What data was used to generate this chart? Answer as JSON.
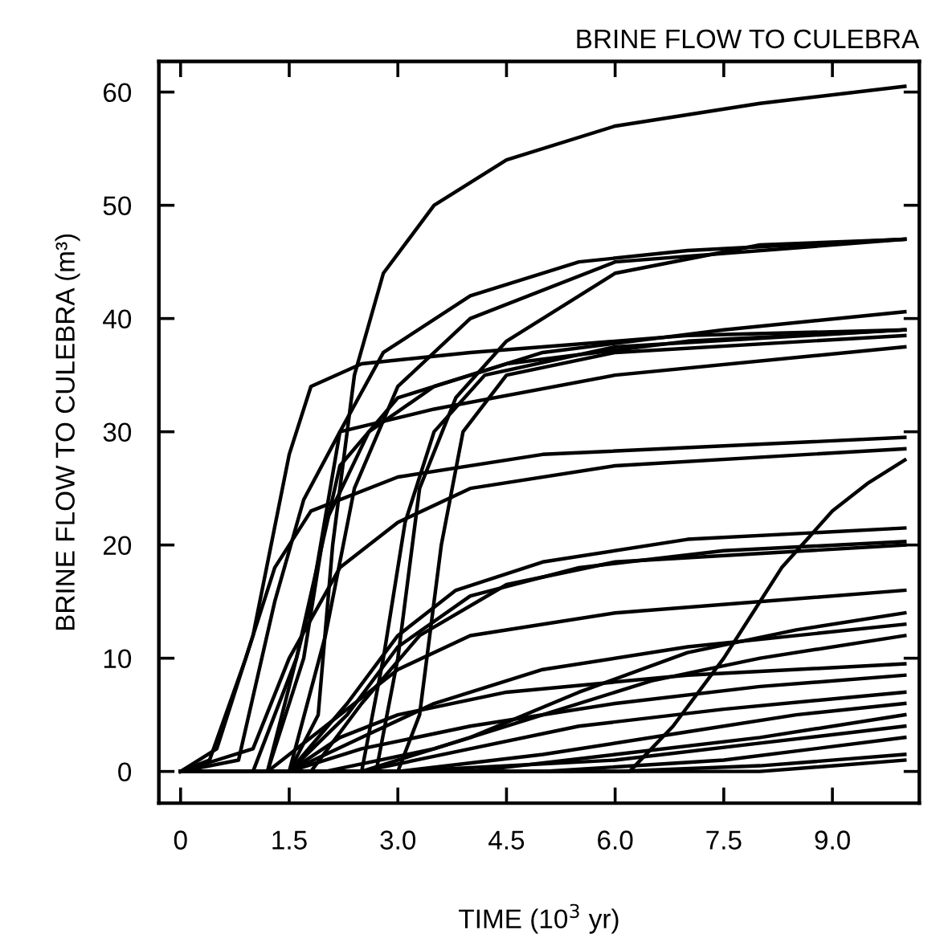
{
  "chart_data": {
    "type": "line",
    "title": "BRINE FLOW TO CULEBRA",
    "xlabel": "TIME (10$^{3}$ yr)",
    "ylabel": "BRINE FLOW TO CULEBRA (m³)",
    "xlim": [
      -0.3,
      10.2
    ],
    "ylim": [
      -2.8,
      62.7
    ],
    "xticks": [
      0,
      1.5,
      {
        "value": 3,
        "label": "3.0"
      },
      4.5,
      {
        "value": 6,
        "label": "6.0"
      },
      7.5,
      {
        "value": 9,
        "label": "9.0"
      }
    ],
    "yticks": [
      0,
      10,
      20,
      30,
      40,
      50,
      60
    ],
    "grid": false,
    "marker": "none",
    "line_style": "solid",
    "series": [
      {
        "color": "#000000",
        "x": [
          0,
          1.5,
          1.9,
          2.1,
          2.4,
          2.8,
          3.5,
          4.5,
          6,
          8,
          10
        ],
        "values": [
          0,
          0,
          5,
          20,
          35,
          44,
          50,
          54,
          57,
          59,
          60.5
        ]
      },
      {
        "color": "#000000",
        "x": [
          0,
          1.2,
          1.8,
          2.2,
          2.8,
          4,
          5.5,
          7,
          10
        ],
        "values": [
          0,
          0,
          15,
          30,
          37,
          42,
          45,
          46,
          47
        ]
      },
      {
        "color": "#000000",
        "x": [
          0,
          1.5,
          2.0,
          2.4,
          3,
          4,
          6,
          10
        ],
        "values": [
          0,
          0,
          12,
          25,
          34,
          40,
          45,
          47
        ]
      },
      {
        "color": "#000000",
        "x": [
          0,
          2.7,
          3.0,
          3.3,
          3.8,
          4.5,
          6,
          8,
          10
        ],
        "values": [
          0,
          0,
          10,
          25,
          33,
          38,
          44,
          46.5,
          47
        ]
      },
      {
        "color": "#000000",
        "x": [
          0,
          0.5,
          1.0,
          1.5,
          1.8,
          2.5,
          4,
          7,
          10
        ],
        "values": [
          0,
          2,
          12,
          28,
          34,
          36,
          37,
          38.5,
          39
        ]
      },
      {
        "color": "#000000",
        "x": [
          0,
          1.2,
          1.7,
          2.0,
          2.6,
          3.5,
          5,
          7.5,
          10
        ],
        "values": [
          0,
          0,
          10,
          22,
          30,
          34,
          37,
          39,
          40.6
        ]
      },
      {
        "color": "#000000",
        "x": [
          0,
          0.8,
          1.3,
          1.7,
          2.2,
          3.5,
          6,
          10
        ],
        "values": [
          0,
          1,
          15,
          24,
          30,
          32,
          35,
          37.5
        ]
      },
      {
        "color": "#000000",
        "x": [
          0,
          1.0,
          1.6,
          2.2,
          3.0,
          4.5,
          7,
          10
        ],
        "values": [
          0,
          0,
          10,
          27,
          33,
          36,
          38,
          39
        ]
      },
      {
        "color": "#000000",
        "x": [
          0,
          3.0,
          3.3,
          3.6,
          3.9,
          4.5,
          6,
          10
        ],
        "values": [
          0,
          0,
          5,
          20,
          30,
          35,
          37,
          38.5
        ]
      },
      {
        "color": "#000000",
        "x": [
          0,
          2.5,
          2.8,
          3.1,
          3.5,
          4.2,
          6,
          10
        ],
        "values": [
          0,
          0,
          10,
          22,
          30,
          35,
          37.5,
          39
        ]
      },
      {
        "color": "#000000",
        "x": [
          0,
          0.4,
          0.9,
          1.3,
          1.8,
          3,
          5,
          10
        ],
        "values": [
          0,
          1,
          10,
          18,
          23,
          26,
          28,
          29.5
        ]
      },
      {
        "color": "#000000",
        "x": [
          0,
          1.0,
          1.5,
          2.2,
          3,
          4,
          6,
          10
        ],
        "values": [
          0,
          2,
          10,
          18,
          22,
          25,
          27,
          28.5
        ]
      },
      {
        "color": "#000000",
        "x": [
          0,
          6.2,
          6.8,
          7.5,
          8.3,
          9.0,
          9.5,
          10
        ],
        "values": [
          0,
          0,
          4,
          10,
          18,
          23,
          25.5,
          27.5
        ]
      },
      {
        "color": "#000000",
        "x": [
          0,
          1.5,
          2.3,
          3,
          3.8,
          5,
          7,
          10
        ],
        "values": [
          0,
          0,
          6,
          12,
          16,
          18.5,
          20.5,
          21.5
        ]
      },
      {
        "color": "#000000",
        "x": [
          0,
          1.5,
          2.3,
          3,
          4,
          5.5,
          7.5,
          10
        ],
        "values": [
          0,
          0,
          5,
          11,
          15.5,
          18,
          19.5,
          20.3
        ]
      },
      {
        "color": "#000000",
        "x": [
          0,
          1.8,
          2.5,
          3.3,
          4.5,
          6,
          10
        ],
        "values": [
          0,
          0,
          6,
          12,
          16.5,
          18.5,
          20
        ]
      },
      {
        "color": "#000000",
        "x": [
          0,
          1.2,
          2,
          3,
          4,
          6,
          10
        ],
        "values": [
          0,
          0,
          4,
          9,
          12,
          14,
          16
        ]
      },
      {
        "color": "#000000",
        "x": [
          0,
          2.5,
          4,
          5.5,
          7,
          8.5,
          10
        ],
        "values": [
          0,
          0,
          3,
          7,
          10.5,
          12.5,
          14
        ]
      },
      {
        "color": "#000000",
        "x": [
          0,
          1.5,
          2.5,
          3.5,
          5,
          7,
          10
        ],
        "values": [
          0,
          0,
          3,
          6,
          9,
          11,
          13
        ]
      },
      {
        "color": "#000000",
        "x": [
          0,
          2,
          3.5,
          5,
          6.5,
          8,
          10
        ],
        "values": [
          0,
          0,
          2,
          5,
          8,
          10,
          12
        ]
      },
      {
        "color": "#000000",
        "x": [
          0,
          1.5,
          2.2,
          3,
          4.5,
          7,
          10
        ],
        "values": [
          0,
          0,
          3,
          5,
          7,
          8.5,
          9.5
        ]
      },
      {
        "color": "#000000",
        "x": [
          0,
          1.5,
          2.5,
          4,
          6,
          8,
          10
        ],
        "values": [
          0,
          0,
          2,
          4,
          6,
          7.5,
          8.5
        ]
      },
      {
        "color": "#000000",
        "x": [
          0,
          2.5,
          4,
          5.5,
          7.5,
          10
        ],
        "values": [
          0,
          0,
          2,
          4,
          5.5,
          7
        ]
      },
      {
        "color": "#000000",
        "x": [
          0,
          3,
          5,
          7,
          8.5,
          10
        ],
        "values": [
          0,
          0,
          1.5,
          3.5,
          5,
          6
        ]
      },
      {
        "color": "#000000",
        "x": [
          0,
          4,
          6,
          8,
          10
        ],
        "values": [
          0,
          0,
          1.5,
          3,
          5
        ]
      },
      {
        "color": "#000000",
        "x": [
          0,
          3,
          6,
          8,
          10
        ],
        "values": [
          0,
          0,
          1,
          2.5,
          4
        ]
      },
      {
        "color": "#000000",
        "x": [
          0,
          5,
          7.5,
          10
        ],
        "values": [
          0,
          0,
          1,
          3
        ]
      },
      {
        "color": "#000000",
        "x": [
          0,
          6,
          8,
          10
        ],
        "values": [
          0,
          0,
          0.5,
          1.5
        ]
      },
      {
        "color": "#000000",
        "x": [
          0,
          8,
          10
        ],
        "values": [
          0,
          0,
          1
        ]
      }
    ]
  }
}
